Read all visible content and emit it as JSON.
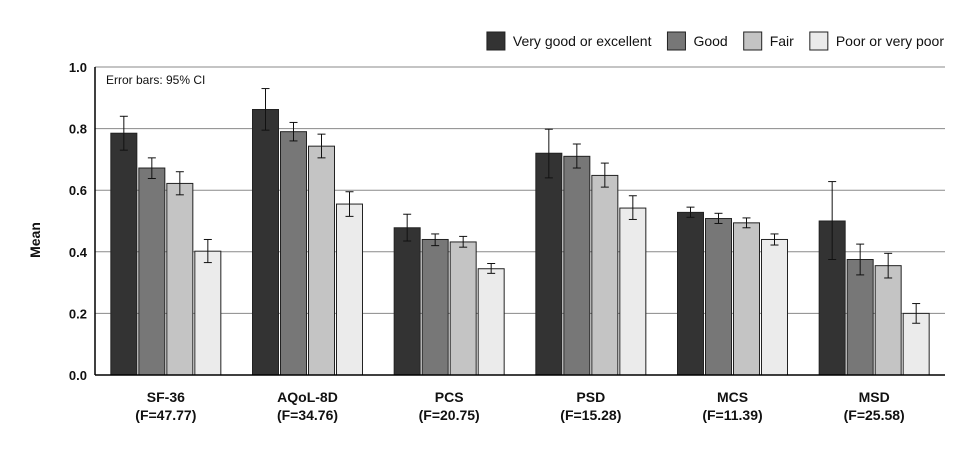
{
  "chart_data": {
    "type": "bar",
    "ylabel": "Mean",
    "ylim": [
      0,
      1.0
    ],
    "yticks": [
      "0.0",
      "0.2",
      "0.4",
      "0.6",
      "0.8",
      "1.0"
    ],
    "grid": "horizontal",
    "legend_position": "top-right",
    "annotation": "Error bars: 95% CI",
    "categories": [
      {
        "name": "SF-36",
        "stat": "(F=47.77)"
      },
      {
        "name": "AQoL-8D",
        "stat": "(F=34.76)"
      },
      {
        "name": "PCS",
        "stat": "(F=20.75)"
      },
      {
        "name": "PSD",
        "stat": "(F=15.28)"
      },
      {
        "name": "MCS",
        "stat": "(F=11.39)"
      },
      {
        "name": "MSD",
        "stat": "(F=25.58)"
      }
    ],
    "series": [
      {
        "name": "Very good or excellent",
        "color": "#333333",
        "values": [
          0.785,
          0.862,
          0.478,
          0.72,
          0.528,
          0.5
        ],
        "ci_low": [
          0.73,
          0.795,
          0.435,
          0.64,
          0.512,
          0.375
        ],
        "ci_high": [
          0.84,
          0.93,
          0.522,
          0.798,
          0.545,
          0.628
        ]
      },
      {
        "name": "Good",
        "color": "#777777",
        "values": [
          0.672,
          0.79,
          0.44,
          0.71,
          0.508,
          0.375
        ],
        "ci_low": [
          0.638,
          0.76,
          0.42,
          0.672,
          0.492,
          0.325
        ],
        "ci_high": [
          0.705,
          0.82,
          0.458,
          0.75,
          0.525,
          0.425
        ]
      },
      {
        "name": "Fair",
        "color": "#c4c4c4",
        "values": [
          0.622,
          0.743,
          0.432,
          0.648,
          0.494,
          0.355
        ],
        "ci_low": [
          0.585,
          0.705,
          0.415,
          0.61,
          0.478,
          0.315
        ],
        "ci_high": [
          0.66,
          0.782,
          0.45,
          0.688,
          0.51,
          0.395
        ]
      },
      {
        "name": "Poor or very poor",
        "color": "#ebebeb",
        "values": [
          0.402,
          0.555,
          0.345,
          0.542,
          0.44,
          0.2
        ],
        "ci_low": [
          0.365,
          0.515,
          0.33,
          0.505,
          0.422,
          0.168
        ],
        "ci_high": [
          0.44,
          0.595,
          0.362,
          0.582,
          0.458,
          0.232
        ]
      }
    ]
  }
}
